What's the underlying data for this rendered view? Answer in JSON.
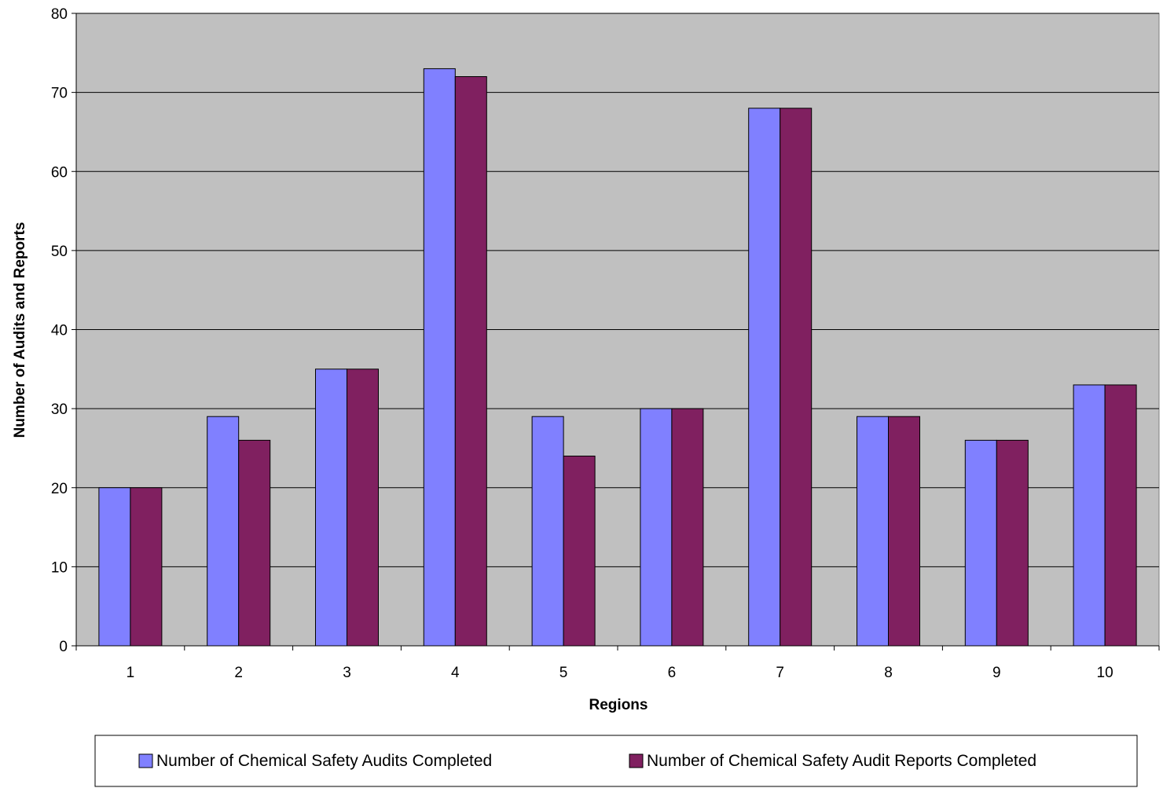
{
  "chart_data": {
    "type": "bar",
    "title": "",
    "xlabel": "Regions",
    "ylabel": "Number of Audits and Reports",
    "categories": [
      "1",
      "2",
      "3",
      "4",
      "5",
      "6",
      "7",
      "8",
      "9",
      "10"
    ],
    "ylim": [
      0,
      80
    ],
    "yticks": [
      "0",
      "10",
      "20",
      "30",
      "40",
      "50",
      "60",
      "70",
      "80"
    ],
    "grid": true,
    "legend_position": "bottom",
    "series": [
      {
        "name": "Number of Chemical Safety Audits Completed",
        "color": "#8080ff",
        "values": [
          20,
          29,
          35,
          73,
          29,
          30,
          68,
          29,
          26,
          33
        ]
      },
      {
        "name": "Number of Chemical Safety Audit Reports Completed",
        "color": "#802060",
        "values": [
          20,
          26,
          35,
          72,
          24,
          30,
          68,
          29,
          26,
          33
        ]
      }
    ],
    "plot_background": "#c0c0c0"
  }
}
